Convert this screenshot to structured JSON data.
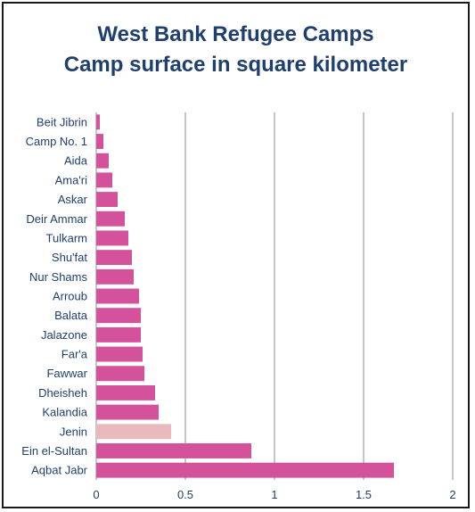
{
  "chart_data": {
    "type": "bar",
    "orientation": "horizontal",
    "title": "West Bank Refugee Camps",
    "subtitle": "Camp surface in square kilometer",
    "categories": [
      "Beit Jibrin",
      "Camp No. 1",
      "Aida",
      "Ama'ri",
      "Askar",
      "Deir Ammar",
      "Tulkarm",
      "Shu'fat",
      "Nur Shams",
      "Arroub",
      "Balata",
      "Jalazone",
      "Far'a",
      "Fawwar",
      "Dheisheh",
      "Kalandia",
      "Jenin",
      "Ein el-Sultan",
      "Aqbat Jabr"
    ],
    "values": [
      0.02,
      0.04,
      0.07,
      0.09,
      0.12,
      0.16,
      0.18,
      0.2,
      0.21,
      0.24,
      0.25,
      0.25,
      0.26,
      0.27,
      0.33,
      0.35,
      0.42,
      0.87,
      1.67
    ],
    "colors": [
      "#d3529b",
      "#d3529b",
      "#d3529b",
      "#d3529b",
      "#d3529b",
      "#d3529b",
      "#d3529b",
      "#d3529b",
      "#d3529b",
      "#d3529b",
      "#d3529b",
      "#d3529b",
      "#d3529b",
      "#d3529b",
      "#d3529b",
      "#d3529b",
      "#e8b9bd",
      "#d3529b",
      "#d3529b"
    ],
    "xlim": [
      0,
      2
    ],
    "xticks": [
      "0",
      "0.5",
      "1",
      "1.5",
      "2"
    ],
    "xlabel": "",
    "ylabel": "",
    "grid": "vertical major gridlines",
    "legend": "none"
  }
}
